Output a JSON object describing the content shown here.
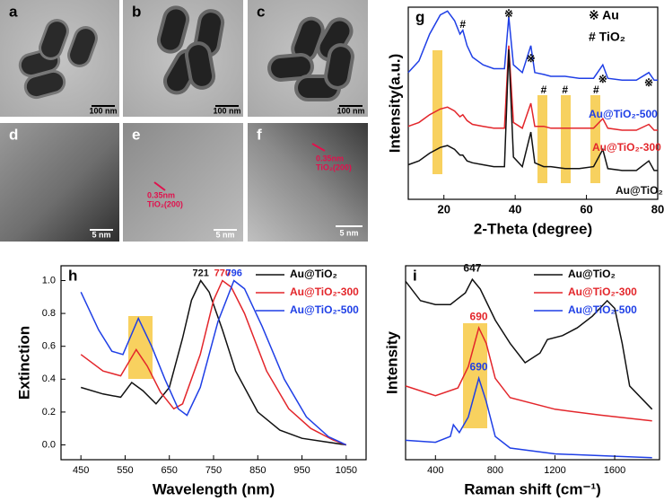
{
  "panels": [
    {
      "label": "a",
      "scale": "100 nm"
    },
    {
      "label": "b",
      "scale": "100 nm"
    },
    {
      "label": "c",
      "scale": "100 nm"
    },
    {
      "label": "d",
      "scale": "5 nm"
    },
    {
      "label": "e",
      "scale": "5 nm",
      "spacing": "0.35nm",
      "plane": "TiO₂(200)"
    },
    {
      "label": "f",
      "scale": "5 nm",
      "spacing": "0.35nm",
      "plane": "TiO₂(200)"
    }
  ],
  "chart_data": [
    {
      "type": "line",
      "panel": "g",
      "x_label": "2-Theta (degree)",
      "y_label": "Intensity(a.u.)",
      "xlim": [
        10,
        80
      ],
      "xticks": [
        20,
        40,
        60,
        80
      ],
      "ylim": [
        0,
        1
      ],
      "legend_notes": [
        "※ Au",
        "# TiO₂"
      ],
      "annotations": [
        {
          "text": "#",
          "x": 25.3
        },
        {
          "text": "※",
          "x": 38.2
        },
        {
          "text": "※",
          "x": 44.4
        },
        {
          "text": "#",
          "x": 48
        },
        {
          "text": "#",
          "x": 54
        },
        {
          "text": "#",
          "x": 62.7
        },
        {
          "text": "※",
          "x": 64.6
        },
        {
          "text": "※",
          "x": 77.5
        }
      ],
      "x": [
        10,
        13,
        16,
        19,
        21,
        23,
        24.5,
        25.3,
        26.5,
        28,
        31,
        34,
        37,
        38.2,
        39.5,
        42,
        44.4,
        45.5,
        48,
        50,
        54,
        58,
        62,
        64.6,
        66,
        70,
        74,
        77.5,
        79,
        80
      ],
      "series": [
        {
          "name": "Au@TiO₂-500",
          "color": "#1f3fe6",
          "values": [
            0.66,
            0.72,
            0.86,
            0.96,
            0.98,
            0.93,
            0.86,
            0.88,
            0.8,
            0.74,
            0.7,
            0.68,
            0.68,
            0.95,
            0.7,
            0.66,
            0.8,
            0.66,
            0.65,
            0.64,
            0.64,
            0.63,
            0.63,
            0.7,
            0.63,
            0.62,
            0.62,
            0.66,
            0.62,
            0.62
          ]
        },
        {
          "name": "Au@TiO₂-300",
          "color": "#e3262b",
          "values": [
            0.38,
            0.4,
            0.44,
            0.47,
            0.48,
            0.46,
            0.43,
            0.44,
            0.41,
            0.39,
            0.38,
            0.37,
            0.37,
            0.8,
            0.4,
            0.37,
            0.5,
            0.38,
            0.38,
            0.37,
            0.37,
            0.37,
            0.37,
            0.42,
            0.37,
            0.36,
            0.36,
            0.39,
            0.36,
            0.36
          ]
        },
        {
          "name": "Au@TiO₂",
          "color": "#111111",
          "values": [
            0.18,
            0.2,
            0.24,
            0.27,
            0.28,
            0.26,
            0.23,
            0.23,
            0.2,
            0.19,
            0.18,
            0.17,
            0.17,
            0.78,
            0.22,
            0.17,
            0.35,
            0.19,
            0.17,
            0.17,
            0.16,
            0.16,
            0.17,
            0.26,
            0.16,
            0.15,
            0.15,
            0.2,
            0.15,
            0.15
          ]
        }
      ]
    },
    {
      "type": "line",
      "panel": "h",
      "x_label": "Wavelength (nm)",
      "y_label": "Extinction",
      "xlim": [
        405,
        1095
      ],
      "xticks": [
        450,
        550,
        650,
        750,
        850,
        950,
        1050
      ],
      "ylim": [
        -0.09,
        1.09
      ],
      "yticks": [
        {
          "value": 0,
          "label": "0.0"
        },
        0.2,
        0.4,
        0.6,
        0.8,
        {
          "value": 1,
          "label": "1.0"
        }
      ],
      "series": [
        {
          "name": "Au@TiO₂",
          "color": "#111111",
          "peak": 721,
          "x": [
            450,
            500,
            540,
            565,
            590,
            620,
            650,
            680,
            700,
            721,
            740,
            770,
            800,
            850,
            900,
            950,
            1000,
            1050
          ],
          "values": [
            0.35,
            0.31,
            0.29,
            0.38,
            0.33,
            0.25,
            0.35,
            0.65,
            0.88,
            1.0,
            0.93,
            0.7,
            0.45,
            0.2,
            0.09,
            0.04,
            0.02,
            0.0
          ]
        },
        {
          "name": "Au@TiO₂-300",
          "color": "#e3262b",
          "peak": 770,
          "x": [
            450,
            500,
            540,
            575,
            600,
            630,
            660,
            680,
            720,
            750,
            770,
            790,
            820,
            870,
            920,
            970,
            1020,
            1050
          ],
          "values": [
            0.55,
            0.45,
            0.42,
            0.58,
            0.48,
            0.32,
            0.22,
            0.25,
            0.55,
            0.88,
            1.0,
            0.96,
            0.8,
            0.45,
            0.22,
            0.1,
            0.03,
            0.0
          ]
        },
        {
          "name": "Au@TiO₂-500",
          "color": "#1f3fe6",
          "peak": 796,
          "x": [
            450,
            490,
            520,
            545,
            580,
            610,
            640,
            670,
            690,
            720,
            760,
            796,
            820,
            860,
            910,
            960,
            1010,
            1050
          ],
          "values": [
            0.93,
            0.7,
            0.57,
            0.55,
            0.77,
            0.6,
            0.4,
            0.22,
            0.18,
            0.35,
            0.75,
            1.0,
            0.95,
            0.72,
            0.4,
            0.17,
            0.05,
            0.0
          ]
        }
      ]
    },
    {
      "type": "line",
      "panel": "i",
      "x_label": "Raman shift (cm⁻¹)",
      "y_label": "Intensity",
      "xlim": [
        200,
        1900
      ],
      "xticks": [
        400,
        800,
        1200,
        1600
      ],
      "ylim": [
        0,
        1
      ],
      "series": [
        {
          "name": "Au@TiO₂",
          "color": "#111111",
          "peak": 647,
          "x": [
            200,
            300,
            400,
            500,
            600,
            647,
            700,
            800,
            900,
            1000,
            1100,
            1150,
            1250,
            1350,
            1450,
            1550,
            1600,
            1650,
            1700,
            1850
          ],
          "values": [
            0.92,
            0.82,
            0.8,
            0.8,
            0.86,
            0.93,
            0.88,
            0.72,
            0.6,
            0.5,
            0.55,
            0.62,
            0.64,
            0.68,
            0.74,
            0.82,
            0.78,
            0.6,
            0.38,
            0.26
          ]
        },
        {
          "name": "Au@TiO₂-300",
          "color": "#e3262b",
          "peak": 690,
          "x": [
            200,
            400,
            550,
            620,
            690,
            740,
            800,
            900,
            1200,
            1500,
            1850
          ],
          "values": [
            0.38,
            0.33,
            0.37,
            0.48,
            0.68,
            0.6,
            0.42,
            0.32,
            0.26,
            0.23,
            0.2
          ]
        },
        {
          "name": "Au@TiO₂-500",
          "color": "#1f3fe6",
          "peak": 690,
          "x": [
            200,
            400,
            500,
            520,
            560,
            620,
            690,
            740,
            800,
            900,
            1200,
            1850
          ],
          "values": [
            0.1,
            0.09,
            0.12,
            0.18,
            0.14,
            0.22,
            0.42,
            0.3,
            0.12,
            0.06,
            0.03,
            0.01
          ]
        }
      ]
    }
  ]
}
